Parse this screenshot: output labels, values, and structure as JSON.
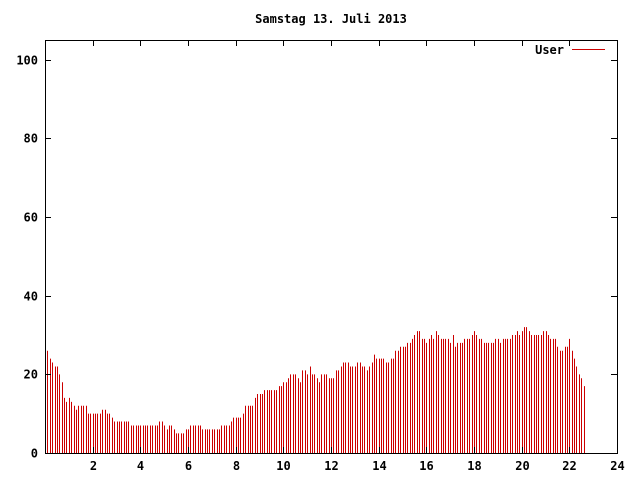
{
  "chart_data": {
    "type": "bar",
    "title": "Samstag 13. Juli 2013",
    "xlabel": "",
    "ylabel": "",
    "xlim": [
      0,
      24
    ],
    "ylim": [
      0,
      105
    ],
    "x_ticks": [
      2,
      4,
      6,
      8,
      10,
      12,
      14,
      16,
      18,
      20,
      22,
      24
    ],
    "x_tick_labels": [
      "2",
      "4",
      "6",
      "8",
      "10",
      "12",
      "14",
      "16",
      "18",
      "20",
      "22",
      "24"
    ],
    "y_ticks": [
      0,
      20,
      40,
      60,
      80,
      100
    ],
    "y_tick_labels": [
      "0",
      "20",
      "40",
      "60",
      "80",
      "100"
    ],
    "grid": false,
    "legend_position": "top-right",
    "series": [
      {
        "name": "User",
        "color": "#cc0000",
        "x_start": 0,
        "x_step": 0.1,
        "values": [
          26,
          26,
          24,
          23,
          22,
          22,
          20,
          18,
          14,
          13,
          14,
          13,
          12,
          11,
          12,
          12,
          12,
          12,
          10,
          10,
          10,
          10,
          10,
          10,
          11,
          11,
          10,
          10,
          9,
          8,
          8,
          8,
          8,
          8,
          8,
          8,
          7,
          7,
          7,
          7,
          7,
          7,
          7,
          7,
          7,
          7,
          7,
          7,
          8,
          8,
          7,
          6,
          7,
          7,
          6,
          5,
          5,
          5,
          5,
          6,
          6,
          7,
          7,
          7,
          7,
          7,
          6,
          6,
          6,
          6,
          6,
          6,
          6,
          6,
          7,
          7,
          7,
          7,
          8,
          9,
          9,
          9,
          9,
          10,
          12,
          12,
          12,
          12,
          14,
          15,
          15,
          15,
          16,
          16,
          16,
          16,
          16,
          16,
          17,
          17,
          18,
          18,
          19,
          20,
          20,
          20,
          19,
          18,
          21,
          21,
          20,
          22,
          20,
          20,
          19,
          18,
          20,
          20,
          20,
          19,
          19,
          19,
          21,
          21,
          22,
          23,
          23,
          23,
          22,
          22,
          22,
          23,
          23,
          22,
          22,
          21,
          22,
          23,
          25,
          24,
          24,
          24,
          24,
          23,
          23,
          24,
          24,
          26,
          26,
          27,
          27,
          27,
          28,
          28,
          29,
          30,
          31,
          31,
          29,
          29,
          28,
          29,
          30,
          29,
          31,
          30,
          29,
          29,
          29,
          29,
          28,
          30,
          27,
          28,
          28,
          28,
          29,
          29,
          29,
          30,
          31,
          30,
          29,
          29,
          28,
          28,
          28,
          28,
          28,
          29,
          29,
          28,
          29,
          29,
          29,
          29,
          30,
          30,
          31,
          30,
          31,
          32,
          32,
          31,
          30,
          30,
          30,
          30,
          30,
          31,
          31,
          30,
          29,
          29,
          29,
          27,
          26,
          26,
          27,
          27,
          29,
          26,
          24,
          22,
          20,
          19,
          17
        ]
      }
    ]
  }
}
